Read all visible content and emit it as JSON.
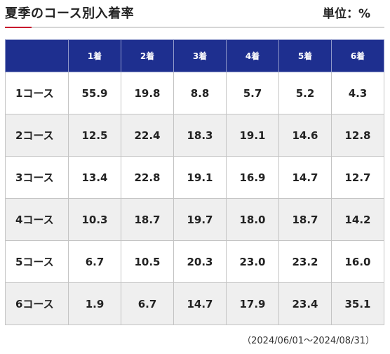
{
  "header": {
    "title": "夏季のコース別入着率",
    "unit": "単位：%"
  },
  "table": {
    "columns": [
      "",
      "1着",
      "2着",
      "3着",
      "4着",
      "5着",
      "6着"
    ],
    "rows": [
      {
        "label": "1コース",
        "values": [
          "55.9",
          "19.8",
          "8.8",
          "5.7",
          "5.2",
          "4.3"
        ]
      },
      {
        "label": "2コース",
        "values": [
          "12.5",
          "22.4",
          "18.3",
          "19.1",
          "14.6",
          "12.8"
        ]
      },
      {
        "label": "3コース",
        "values": [
          "13.4",
          "22.8",
          "19.1",
          "16.9",
          "14.7",
          "12.7"
        ]
      },
      {
        "label": "4コース",
        "values": [
          "10.3",
          "18.7",
          "19.7",
          "18.0",
          "18.7",
          "14.2"
        ]
      },
      {
        "label": "5コース",
        "values": [
          "6.7",
          "10.5",
          "20.3",
          "23.0",
          "23.2",
          "16.0"
        ]
      },
      {
        "label": "6コース",
        "values": [
          "1.9",
          "6.7",
          "14.7",
          "17.9",
          "23.4",
          "35.1"
        ]
      }
    ]
  },
  "footer": {
    "period": "（2024/06/01〜2024/08/31）"
  },
  "colors": {
    "header_bg": "#1e2f8f",
    "accent": "#c8102e",
    "stripe": "#efefef"
  }
}
